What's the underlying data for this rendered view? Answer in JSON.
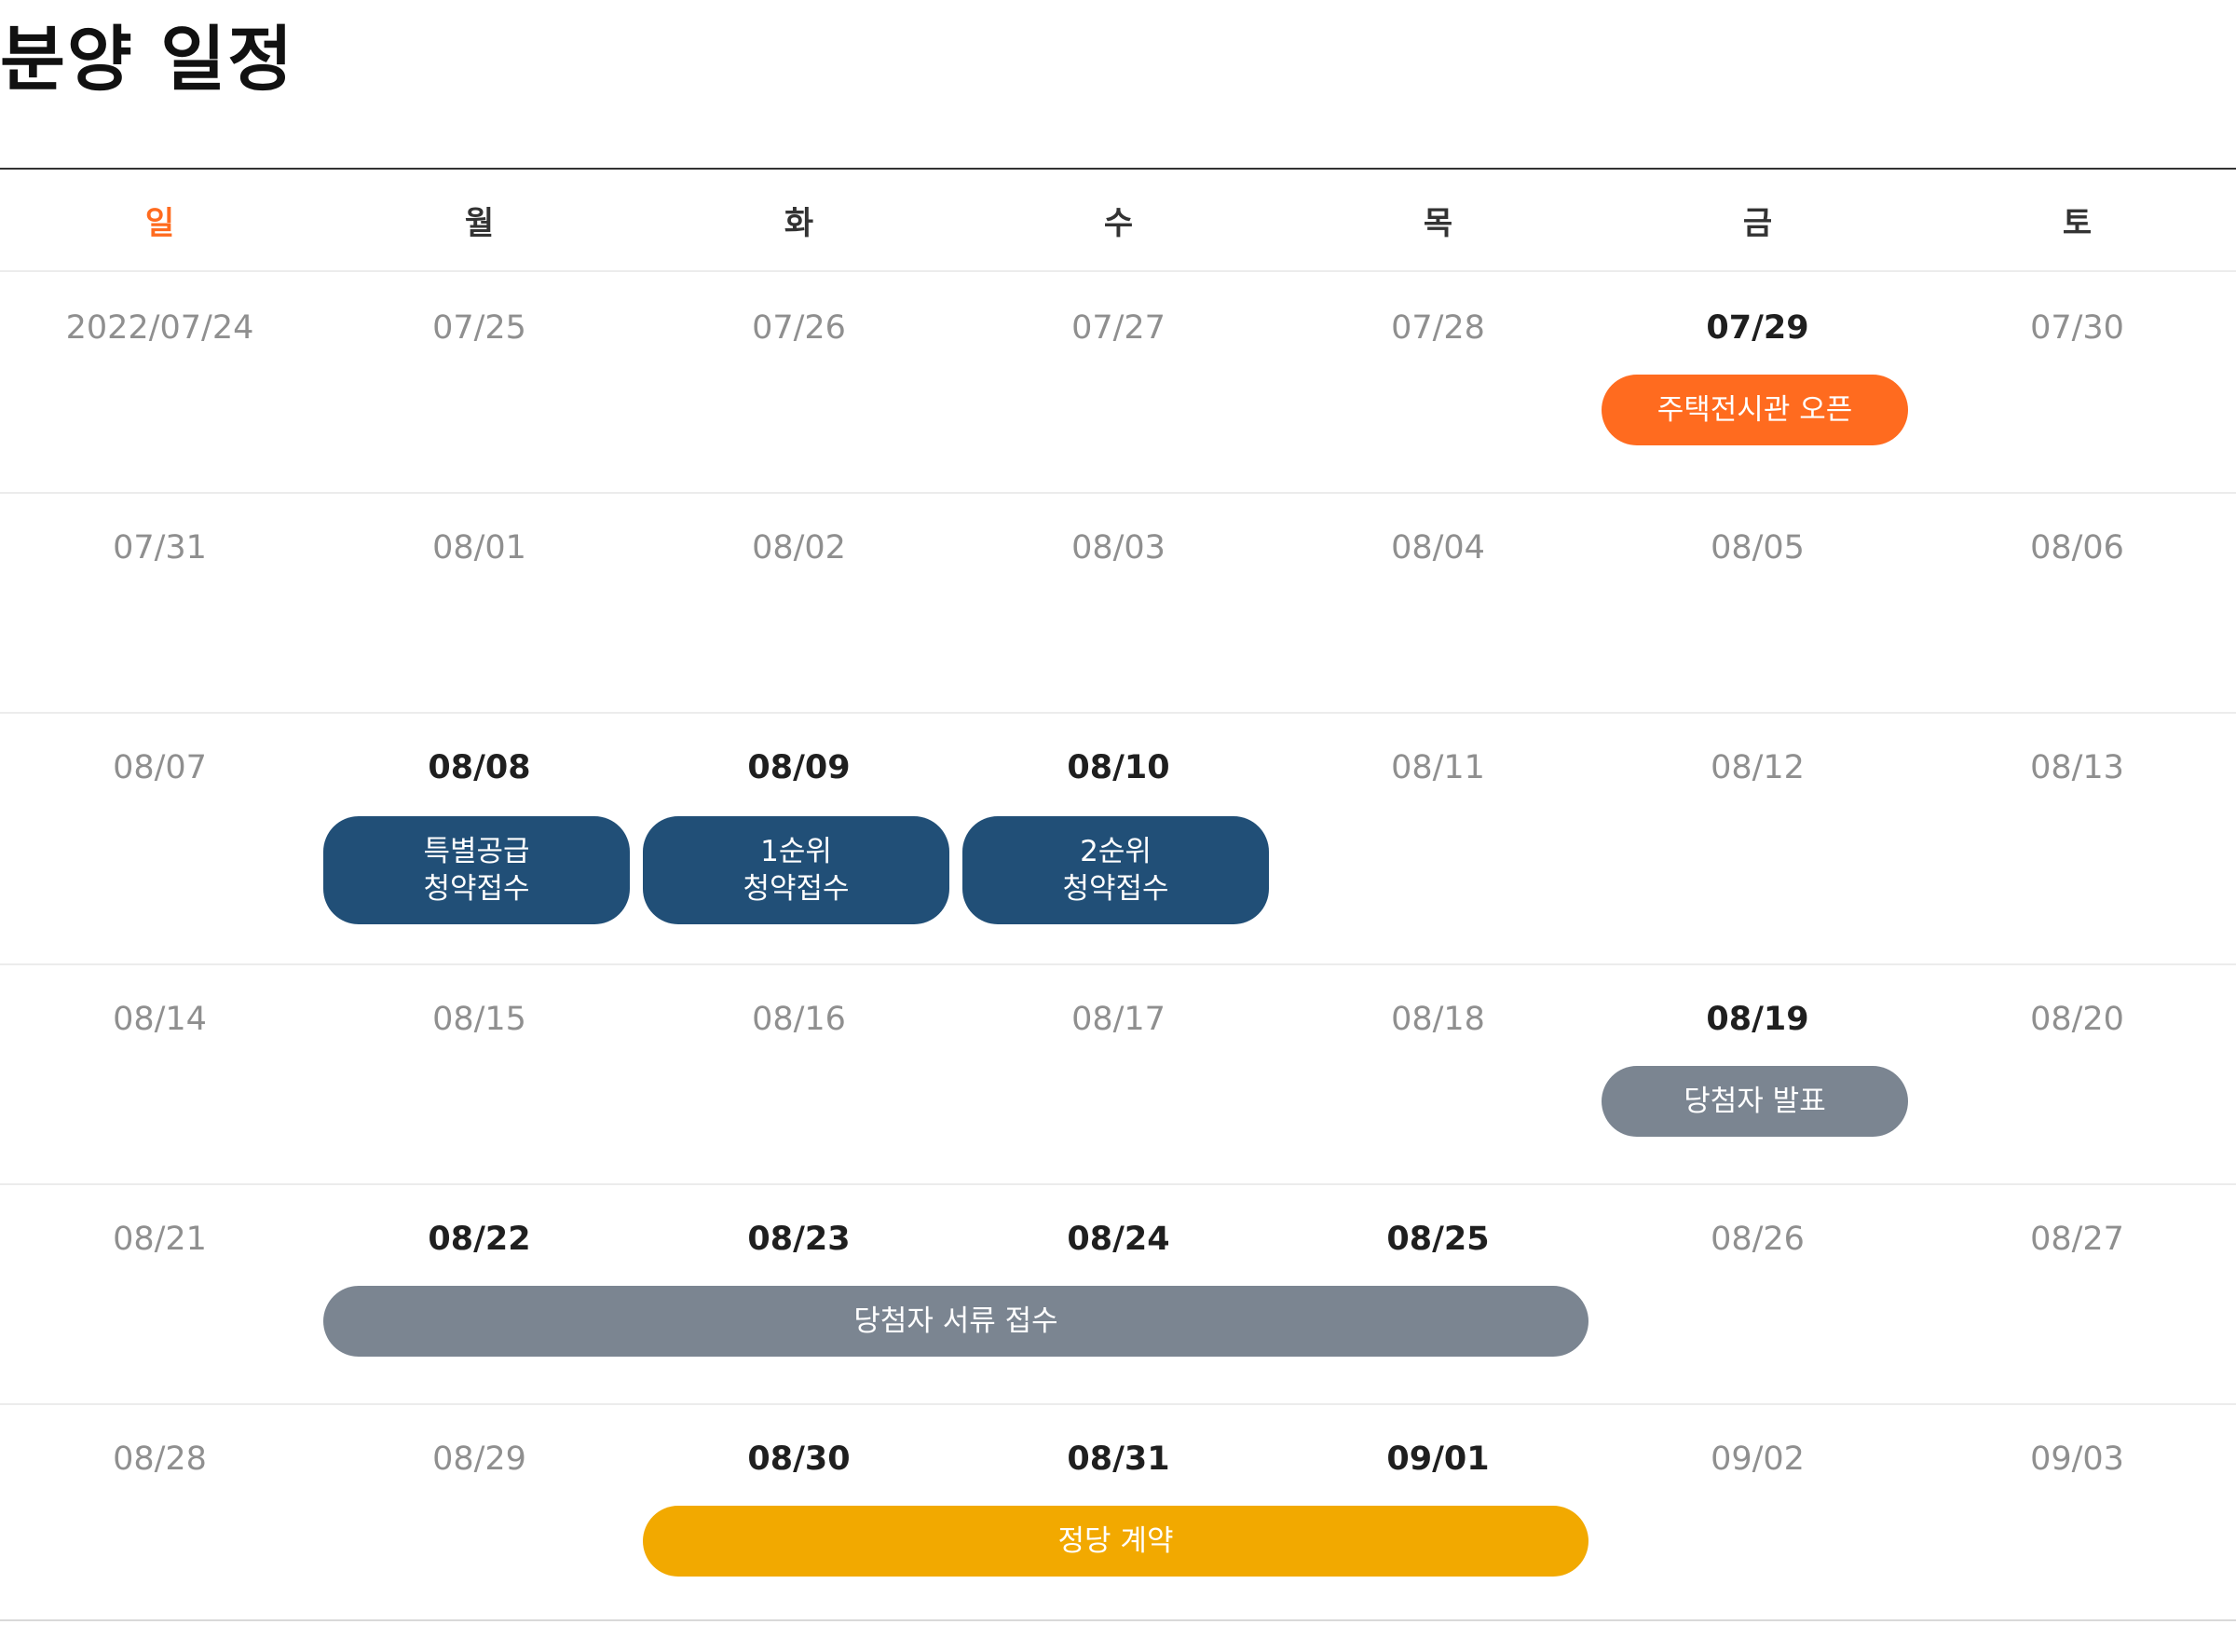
{
  "page": {
    "title": "분양 일정"
  },
  "colors": {
    "sunday": "#ff6b1f",
    "event_orange": "#ff6b1f",
    "event_navy": "#214f77",
    "event_gray": "#7b8591",
    "event_yellow": "#f2a900",
    "date_active": "#1f1f1f",
    "date_inactive": "#8f8f8f"
  },
  "calendar": {
    "weekdays": [
      "일",
      "월",
      "화",
      "수",
      "목",
      "금",
      "토"
    ],
    "weeks": [
      {
        "days": [
          {
            "label": "2022/07/24",
            "active": false
          },
          {
            "label": "07/25",
            "active": false
          },
          {
            "label": "07/26",
            "active": false
          },
          {
            "label": "07/27",
            "active": false
          },
          {
            "label": "07/28",
            "active": false
          },
          {
            "label": "07/29",
            "active": true
          },
          {
            "label": "07/30",
            "active": false
          }
        ],
        "events": [
          {
            "lines": [
              "주택전시관 오픈"
            ],
            "start": 5,
            "span": 1,
            "color": "orange"
          }
        ]
      },
      {
        "days": [
          {
            "label": "07/31",
            "active": false
          },
          {
            "label": "08/01",
            "active": false
          },
          {
            "label": "08/02",
            "active": false
          },
          {
            "label": "08/03",
            "active": false
          },
          {
            "label": "08/04",
            "active": false
          },
          {
            "label": "08/05",
            "active": false
          },
          {
            "label": "08/06",
            "active": false
          }
        ],
        "events": []
      },
      {
        "days": [
          {
            "label": "08/07",
            "active": false
          },
          {
            "label": "08/08",
            "active": true
          },
          {
            "label": "08/09",
            "active": true
          },
          {
            "label": "08/10",
            "active": true
          },
          {
            "label": "08/11",
            "active": false
          },
          {
            "label": "08/12",
            "active": false
          },
          {
            "label": "08/13",
            "active": false
          }
        ],
        "events": [
          {
            "lines": [
              "특별공급",
              "청약접수"
            ],
            "start": 1,
            "span": 1,
            "color": "navy"
          },
          {
            "lines": [
              "1순위",
              "청약접수"
            ],
            "start": 2,
            "span": 1,
            "color": "navy"
          },
          {
            "lines": [
              "2순위",
              "청약접수"
            ],
            "start": 3,
            "span": 1,
            "color": "navy"
          }
        ]
      },
      {
        "days": [
          {
            "label": "08/14",
            "active": false
          },
          {
            "label": "08/15",
            "active": false
          },
          {
            "label": "08/16",
            "active": false
          },
          {
            "label": "08/17",
            "active": false
          },
          {
            "label": "08/18",
            "active": false
          },
          {
            "label": "08/19",
            "active": true
          },
          {
            "label": "08/20",
            "active": false
          }
        ],
        "events": [
          {
            "lines": [
              "당첨자 발표"
            ],
            "start": 5,
            "span": 1,
            "color": "gray"
          }
        ]
      },
      {
        "days": [
          {
            "label": "08/21",
            "active": false
          },
          {
            "label": "08/22",
            "active": true
          },
          {
            "label": "08/23",
            "active": true
          },
          {
            "label": "08/24",
            "active": true
          },
          {
            "label": "08/25",
            "active": true
          },
          {
            "label": "08/26",
            "active": false
          },
          {
            "label": "08/27",
            "active": false
          }
        ],
        "events": [
          {
            "lines": [
              "당첨자 서류 접수"
            ],
            "start": 1,
            "span": 4,
            "color": "gray"
          }
        ]
      },
      {
        "days": [
          {
            "label": "08/28",
            "active": false
          },
          {
            "label": "08/29",
            "active": false
          },
          {
            "label": "08/30",
            "active": true
          },
          {
            "label": "08/31",
            "active": true
          },
          {
            "label": "09/01",
            "active": true
          },
          {
            "label": "09/02",
            "active": false
          },
          {
            "label": "09/03",
            "active": false
          }
        ],
        "events": [
          {
            "lines": [
              "정당 계약"
            ],
            "start": 2,
            "span": 3,
            "color": "yellow"
          }
        ]
      }
    ]
  }
}
